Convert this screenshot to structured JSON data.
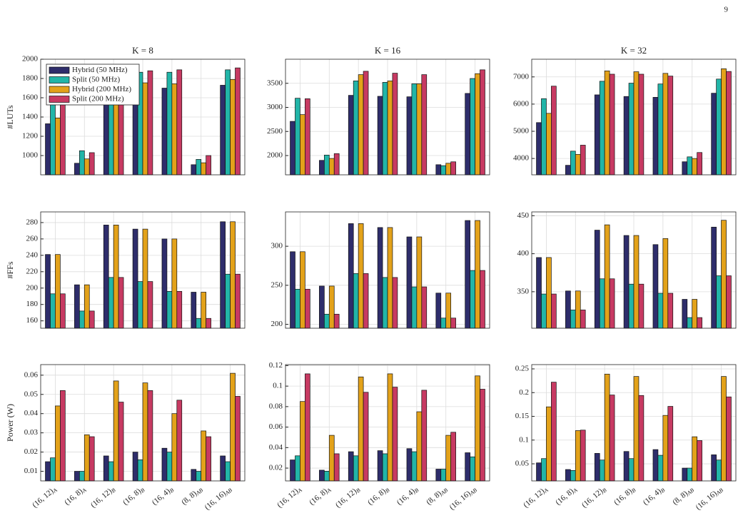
{
  "page_number": "9",
  "chart_data": [
    {
      "type": "bar",
      "title": "K = 8",
      "ylabel": "#LUTs",
      "ylim": [
        800,
        2000
      ],
      "yticks": [
        1000,
        1200,
        1400,
        1600,
        1800,
        2000
      ],
      "grid": true,
      "legend": "upper left",
      "series": [
        {
          "name": "Hybrid (50 MHz)",
          "color": "#2e2d6b",
          "values": [
            1330,
            920,
            1860,
            1850,
            1700,
            905,
            1730
          ]
        },
        {
          "name": "Split (50 MHz)",
          "color": "#22b5a8",
          "values": [
            1640,
            1050,
            1870,
            1865,
            1865,
            960,
            1890
          ]
        },
        {
          "name": "Hybrid (200 MHz)",
          "color": "#e3a21a",
          "values": [
            1390,
            965,
            1760,
            1755,
            1745,
            925,
            1790
          ]
        },
        {
          "name": "Split (200 MHz)",
          "color": "#c73a62",
          "values": [
            1590,
            1030,
            1880,
            1880,
            1890,
            1000,
            1910
          ]
        }
      ]
    },
    {
      "type": "bar",
      "title": "K = 16",
      "ylim": [
        1600,
        4000
      ],
      "yticks": [
        2000,
        2500,
        3000,
        3500
      ],
      "grid": true,
      "series": [
        {
          "color": "#2e2d6b",
          "values": [
            2710,
            1900,
            3250,
            3230,
            3220,
            1810,
            3290
          ]
        },
        {
          "color": "#22b5a8",
          "values": [
            3190,
            2010,
            3550,
            3520,
            3490,
            1790,
            3600
          ]
        },
        {
          "color": "#e3a21a",
          "values": [
            2850,
            1940,
            3680,
            3550,
            3490,
            1840,
            3700
          ]
        },
        {
          "color": "#c73a62",
          "values": [
            3180,
            2040,
            3750,
            3710,
            3680,
            1870,
            3780
          ]
        }
      ]
    },
    {
      "type": "bar",
      "title": "K = 32",
      "ylim": [
        3400,
        7650
      ],
      "yticks": [
        4000,
        5000,
        6000,
        7000
      ],
      "grid": true,
      "series": [
        {
          "color": "#2e2d6b",
          "values": [
            5320,
            3750,
            6340,
            6280,
            6250,
            3880,
            6400
          ]
        },
        {
          "color": "#22b5a8",
          "values": [
            6200,
            4270,
            6840,
            6770,
            6740,
            4060,
            6920
          ]
        },
        {
          "color": "#e3a21a",
          "values": [
            5660,
            4150,
            7220,
            7190,
            7130,
            4000,
            7300
          ]
        },
        {
          "color": "#c73a62",
          "values": [
            6660,
            4490,
            7100,
            7100,
            7030,
            4220,
            7200
          ]
        }
      ]
    },
    {
      "type": "bar",
      "ylabel": "#FFs",
      "ylim": [
        151,
        293
      ],
      "yticks": [
        160,
        180,
        200,
        220,
        240,
        260,
        280
      ],
      "grid": true,
      "series": [
        {
          "color": "#2e2d6b",
          "values": [
            241,
            204,
            277,
            272,
            260,
            195,
            281
          ]
        },
        {
          "color": "#22b5a8",
          "values": [
            193,
            172,
            213,
            208,
            196,
            163,
            217
          ]
        },
        {
          "color": "#e3a21a",
          "values": [
            241,
            204,
            277,
            272,
            260,
            195,
            281
          ]
        },
        {
          "color": "#c73a62",
          "values": [
            193,
            172,
            213,
            208,
            196,
            163,
            217
          ]
        }
      ]
    },
    {
      "type": "bar",
      "ylim": [
        195,
        344
      ],
      "yticks": [
        200,
        250,
        300
      ],
      "grid": true,
      "series": [
        {
          "color": "#2e2d6b",
          "values": [
            293,
            249,
            329,
            324,
            312,
            240,
            333
          ]
        },
        {
          "color": "#22b5a8",
          "values": [
            245,
            213,
            265,
            260,
            248,
            208,
            269
          ]
        },
        {
          "color": "#e3a21a",
          "values": [
            293,
            249,
            329,
            324,
            312,
            240,
            333
          ]
        },
        {
          "color": "#c73a62",
          "values": [
            245,
            213,
            265,
            260,
            248,
            208,
            269
          ]
        }
      ]
    },
    {
      "type": "bar",
      "ylim": [
        302,
        455
      ],
      "yticks": [
        350,
        400,
        450
      ],
      "grid": true,
      "series": [
        {
          "color": "#2e2d6b",
          "values": [
            395,
            351,
            431,
            424,
            412,
            340,
            435
          ]
        },
        {
          "color": "#22b5a8",
          "values": [
            347,
            326,
            367,
            360,
            348,
            316,
            371
          ]
        },
        {
          "color": "#e3a21a",
          "values": [
            395,
            351,
            438,
            424,
            420,
            340,
            444
          ]
        },
        {
          "color": "#c73a62",
          "values": [
            347,
            326,
            367,
            360,
            348,
            316,
            371
          ]
        }
      ]
    },
    {
      "type": "bar",
      "ylabel": "Power (W)",
      "ylim": [
        0.005,
        0.0655
      ],
      "yticks": [
        0.01,
        0.02,
        0.03,
        0.04,
        0.05,
        0.06
      ],
      "grid": true,
      "categories": [
        "(16, 12)",
        "(16, 8)",
        "(16, 12)",
        "(16, 8)",
        "(16, 4)",
        "(8, 8)",
        "(16, 16)"
      ],
      "category_subscripts": [
        "A",
        "A",
        "B",
        "B",
        "B",
        "AB",
        "AB"
      ],
      "series": [
        {
          "color": "#2e2d6b",
          "values": [
            0.015,
            0.01,
            0.018,
            0.02,
            0.022,
            0.011,
            0.018
          ]
        },
        {
          "color": "#22b5a8",
          "values": [
            0.017,
            0.01,
            0.015,
            0.016,
            0.02,
            0.01,
            0.015
          ]
        },
        {
          "color": "#e3a21a",
          "values": [
            0.044,
            0.029,
            0.057,
            0.056,
            0.04,
            0.031,
            0.061
          ]
        },
        {
          "color": "#c73a62",
          "values": [
            0.052,
            0.028,
            0.046,
            0.052,
            0.047,
            0.028,
            0.049
          ]
        }
      ]
    },
    {
      "type": "bar",
      "ylim": [
        0.0075,
        0.121
      ],
      "yticks": [
        0.02,
        0.04,
        0.06,
        0.08,
        0.1,
        0.12
      ],
      "grid": true,
      "categories": [
        "(16, 12)",
        "(16, 8)",
        "(16, 12)",
        "(16, 8)",
        "(16, 4)",
        "(8, 8)",
        "(16, 16)"
      ],
      "category_subscripts": [
        "A",
        "A",
        "B",
        "B",
        "B",
        "AB",
        "AB"
      ],
      "series": [
        {
          "color": "#2e2d6b",
          "values": [
            0.028,
            0.018,
            0.036,
            0.037,
            0.039,
            0.019,
            0.035
          ]
        },
        {
          "color": "#22b5a8",
          "values": [
            0.032,
            0.017,
            0.032,
            0.034,
            0.036,
            0.019,
            0.031
          ]
        },
        {
          "color": "#e3a21a",
          "values": [
            0.085,
            0.052,
            0.109,
            0.112,
            0.075,
            0.052,
            0.11
          ]
        },
        {
          "color": "#c73a62",
          "values": [
            0.112,
            0.034,
            0.094,
            0.099,
            0.096,
            0.055,
            0.097
          ]
        }
      ]
    },
    {
      "type": "bar",
      "ylim": [
        0.014,
        0.259
      ],
      "yticks": [
        0.05,
        0.1,
        0.15,
        0.2,
        0.25
      ],
      "grid": true,
      "categories": [
        "(16, 12)",
        "(16, 8)",
        "(16, 12)",
        "(16, 8)",
        "(16, 4)",
        "(8, 8)",
        "(16, 16)"
      ],
      "category_subscripts": [
        "A",
        "A",
        "B",
        "B",
        "B",
        "AB",
        "AB"
      ],
      "series": [
        {
          "color": "#2e2d6b",
          "values": [
            0.052,
            0.038,
            0.072,
            0.076,
            0.08,
            0.041,
            0.069
          ]
        },
        {
          "color": "#22b5a8",
          "values": [
            0.061,
            0.036,
            0.058,
            0.061,
            0.068,
            0.041,
            0.058
          ]
        },
        {
          "color": "#e3a21a",
          "values": [
            0.17,
            0.12,
            0.239,
            0.234,
            0.152,
            0.107,
            0.234
          ]
        },
        {
          "color": "#c73a62",
          "values": [
            0.222,
            0.121,
            0.195,
            0.194,
            0.171,
            0.099,
            0.191
          ]
        }
      ]
    }
  ]
}
